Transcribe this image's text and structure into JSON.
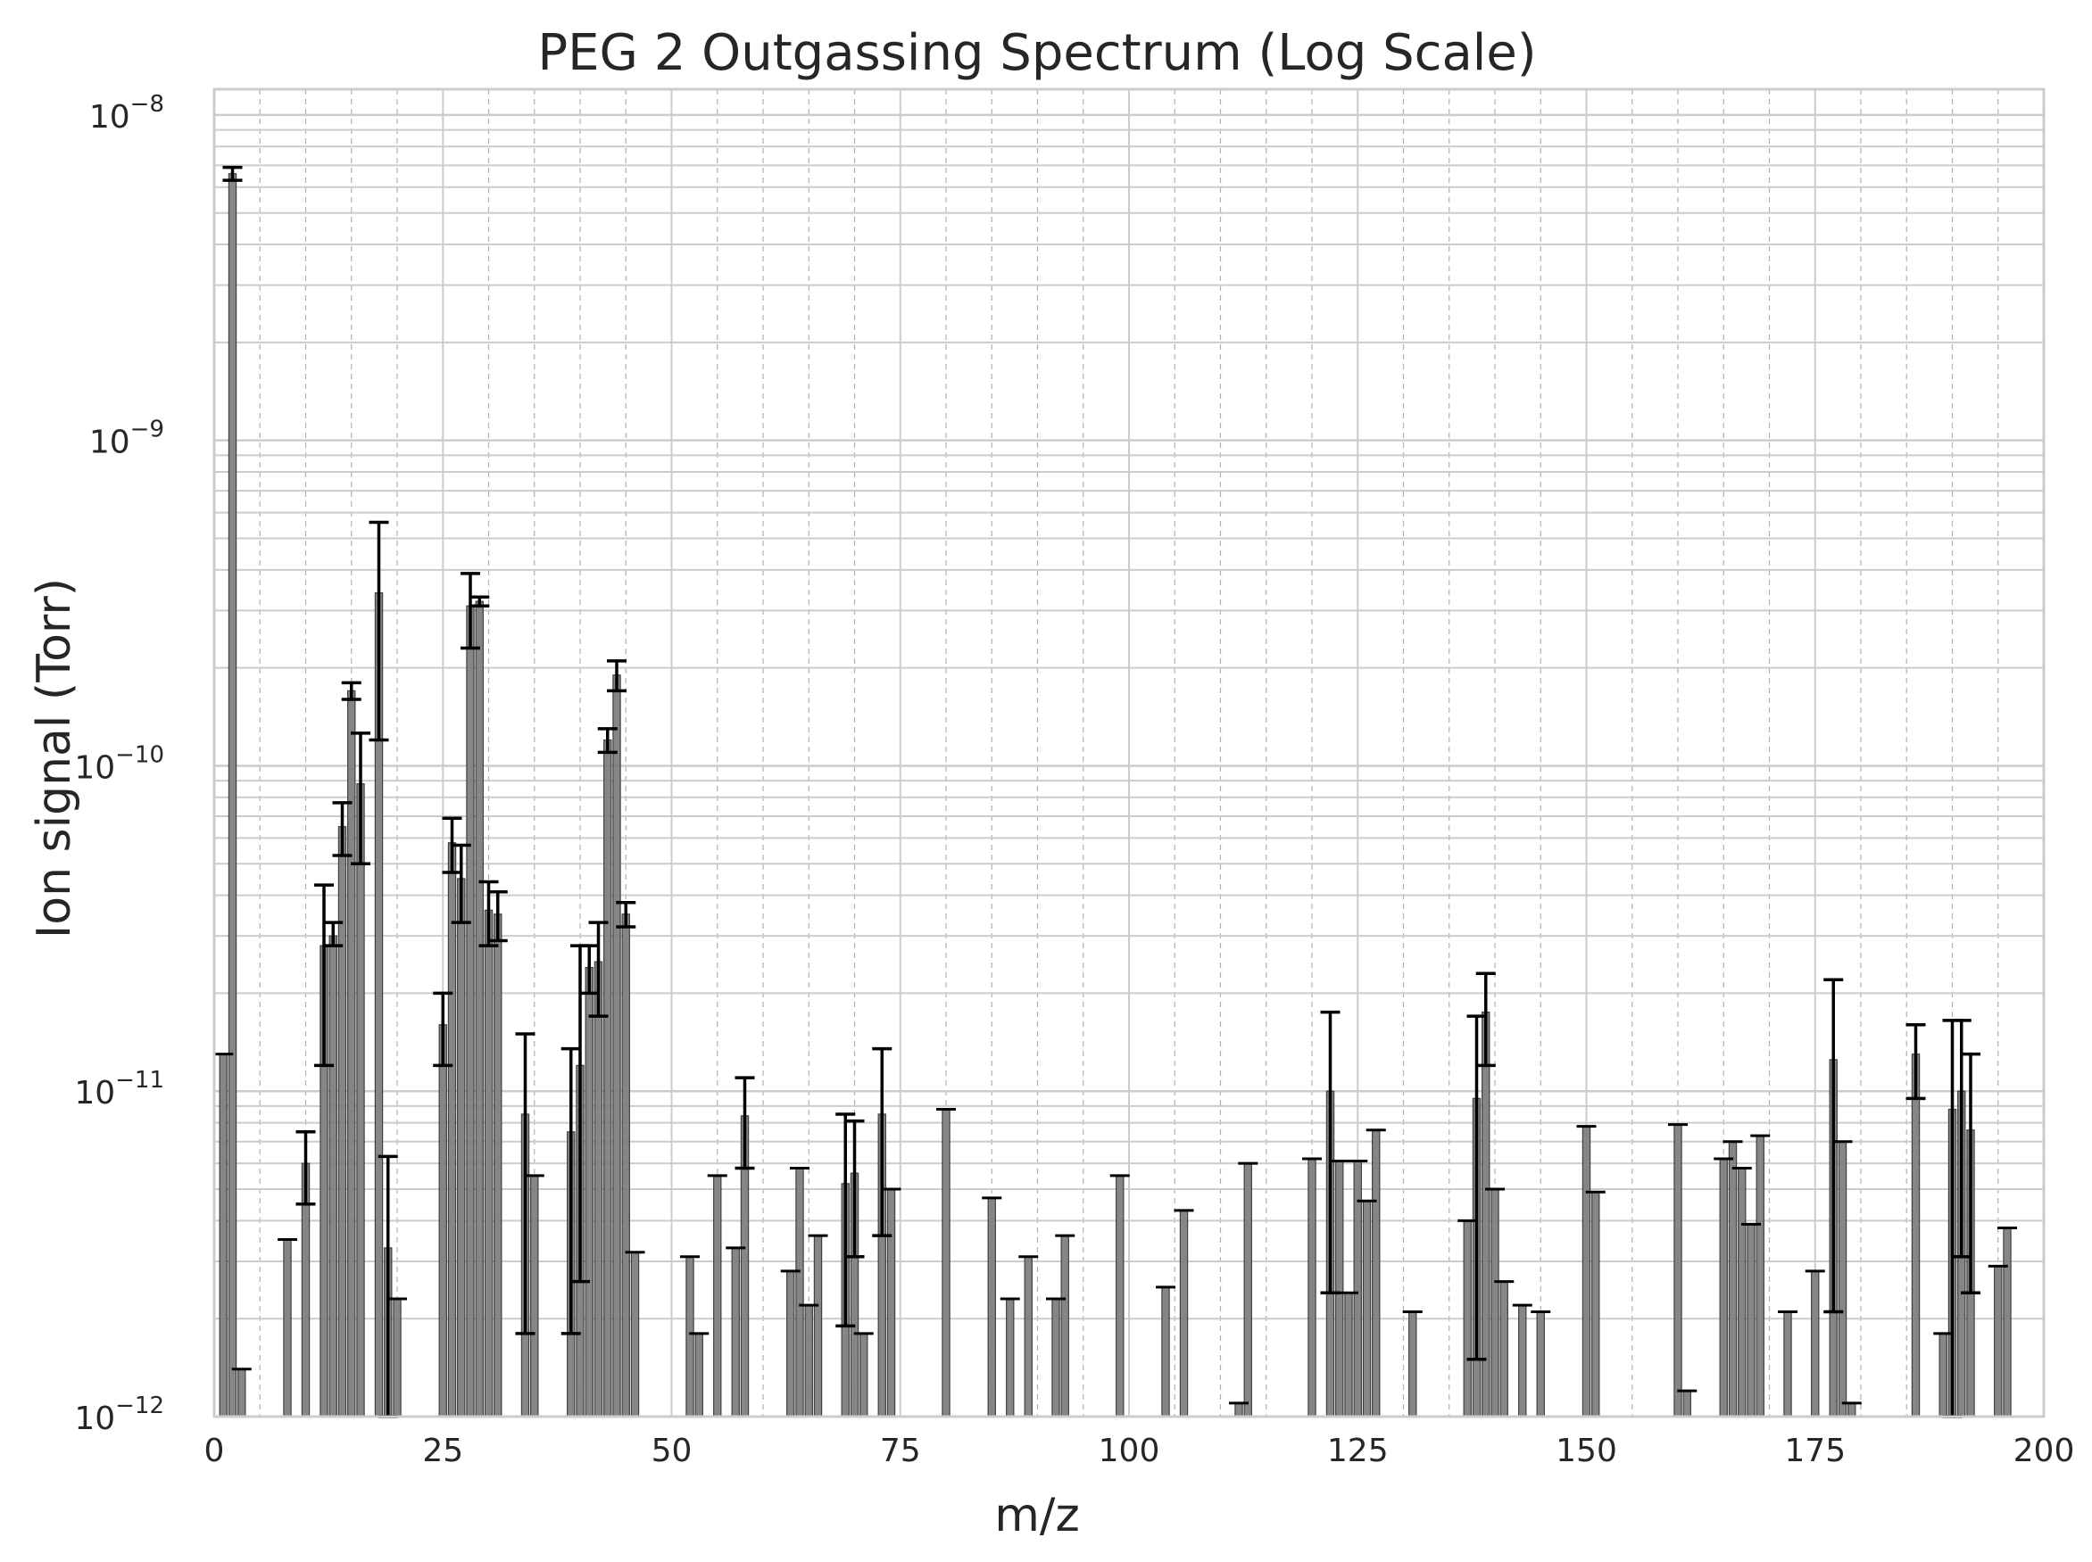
{
  "chart_data": {
    "type": "bar",
    "title": "PEG 2 Outgassing Spectrum (Log Scale)",
    "xlabel": "m/z",
    "ylabel": "Ion signal (Torr)",
    "xlim": [
      0,
      200
    ],
    "ylim": [
      1e-12,
      1.2e-08
    ],
    "yscale": "log",
    "grid": true,
    "legend": "none",
    "x_ticks": [
      "0",
      "25",
      "50",
      "75",
      "100",
      "125",
      "150",
      "175",
      "200"
    ],
    "y_ticks": [
      {
        "base": "10",
        "exp": "−12",
        "value": 1e-12
      },
      {
        "base": "10",
        "exp": "−11",
        "value": 1e-11
      },
      {
        "base": "10",
        "exp": "−10",
        "value": 1e-10
      },
      {
        "base": "10",
        "exp": "−9",
        "value": 1e-09
      },
      {
        "base": "10",
        "exp": "−8",
        "value": 1e-08
      }
    ],
    "colors": {
      "bar": "#7f7f7f",
      "bar_edge": "#404040",
      "error_bar": "#000000",
      "grid": "#cccccc",
      "axes": "#cccccc"
    },
    "bars": [
      {
        "x": 1,
        "y": 1.3e-11
      },
      {
        "x": 2,
        "y": 6.6e-09,
        "err_low": 6.3e-09,
        "err_high": 6.9e-09
      },
      {
        "x": 3,
        "y": 1.4e-12
      },
      {
        "x": 8,
        "y": 3.5e-12
      },
      {
        "x": 10,
        "y": 6e-12,
        "err_low": 4.5e-12,
        "err_high": 7.5e-12
      },
      {
        "x": 12,
        "y": 2.8e-11,
        "err_low": 1.2e-11,
        "err_high": 4.3e-11
      },
      {
        "x": 13,
        "y": 3e-11,
        "err_low": 2.8e-11,
        "err_high": 3.3e-11
      },
      {
        "x": 14,
        "y": 6.5e-11,
        "err_low": 5.3e-11,
        "err_high": 7.7e-11
      },
      {
        "x": 15,
        "y": 1.7e-10,
        "err_low": 1.6e-10,
        "err_high": 1.8e-10
      },
      {
        "x": 16,
        "y": 8.8e-11,
        "err_low": 5e-11,
        "err_high": 1.26e-10
      },
      {
        "x": 18,
        "y": 3.4e-10,
        "err_low": 1.2e-10,
        "err_high": 5.6e-10
      },
      {
        "x": 19,
        "y": 3.3e-12,
        "err_low": 1e-12,
        "err_high": 6.3e-12
      },
      {
        "x": 20,
        "y": 2.3e-12
      },
      {
        "x": 25,
        "y": 1.6e-11,
        "err_low": 1.2e-11,
        "err_high": 2e-11
      },
      {
        "x": 26,
        "y": 5.8e-11,
        "err_low": 4.7e-11,
        "err_high": 6.9e-11
      },
      {
        "x": 27,
        "y": 4.5e-11,
        "err_low": 3.3e-11,
        "err_high": 5.7e-11
      },
      {
        "x": 28,
        "y": 3.1e-10,
        "err_low": 2.3e-10,
        "err_high": 3.9e-10
      },
      {
        "x": 29,
        "y": 3.2e-10,
        "err_low": 3.1e-10,
        "err_high": 3.3e-10
      },
      {
        "x": 30,
        "y": 3.6e-11,
        "err_low": 2.8e-11,
        "err_high": 4.4e-11
      },
      {
        "x": 31,
        "y": 3.5e-11,
        "err_low": 2.9e-11,
        "err_high": 4.1e-11
      },
      {
        "x": 34,
        "y": 8.5e-12,
        "err_low": 1.8e-12,
        "err_high": 1.5e-11
      },
      {
        "x": 35,
        "y": 5.5e-12
      },
      {
        "x": 39,
        "y": 7.5e-12,
        "err_low": 1.8e-12,
        "err_high": 1.35e-11
      },
      {
        "x": 40,
        "y": 1.2e-11,
        "err_low": 2.6e-12,
        "err_high": 2.8e-11
      },
      {
        "x": 41,
        "y": 2.4e-11,
        "err_low": 2e-11,
        "err_high": 2.8e-11
      },
      {
        "x": 42,
        "y": 2.5e-11,
        "err_low": 1.7e-11,
        "err_high": 3.3e-11
      },
      {
        "x": 43,
        "y": 1.2e-10,
        "err_low": 1.1e-10,
        "err_high": 1.3e-10
      },
      {
        "x": 44,
        "y": 1.9e-10,
        "err_low": 1.7e-10,
        "err_high": 2.1e-10
      },
      {
        "x": 45,
        "y": 3.5e-11,
        "err_low": 3.2e-11,
        "err_high": 3.8e-11
      },
      {
        "x": 46,
        "y": 3.2e-12
      },
      {
        "x": 52,
        "y": 3.1e-12
      },
      {
        "x": 53,
        "y": 1.8e-12
      },
      {
        "x": 55,
        "y": 5.5e-12
      },
      {
        "x": 57,
        "y": 3.3e-12
      },
      {
        "x": 58,
        "y": 8.4e-12,
        "err_low": 5.8e-12,
        "err_high": 1.1e-11
      },
      {
        "x": 63,
        "y": 2.8e-12
      },
      {
        "x": 64,
        "y": 5.8e-12
      },
      {
        "x": 65,
        "y": 2.2e-12
      },
      {
        "x": 66,
        "y": 3.6e-12
      },
      {
        "x": 69,
        "y": 5.2e-12,
        "err_low": 1.9e-12,
        "err_high": 8.5e-12
      },
      {
        "x": 70,
        "y": 5.6e-12,
        "err_low": 3.1e-12,
        "err_high": 8.1e-12
      },
      {
        "x": 71,
        "y": 1.8e-12
      },
      {
        "x": 73,
        "y": 8.5e-12,
        "err_low": 3.6e-12,
        "err_high": 1.35e-11
      },
      {
        "x": 74,
        "y": 5e-12
      },
      {
        "x": 80,
        "y": 8.8e-12
      },
      {
        "x": 85,
        "y": 4.7e-12
      },
      {
        "x": 87,
        "y": 2.3e-12
      },
      {
        "x": 89,
        "y": 3.1e-12
      },
      {
        "x": 92,
        "y": 2.3e-12
      },
      {
        "x": 93,
        "y": 3.6e-12
      },
      {
        "x": 99,
        "y": 5.5e-12
      },
      {
        "x": 104,
        "y": 2.5e-12
      },
      {
        "x": 106,
        "y": 4.3e-12
      },
      {
        "x": 112,
        "y": 1.1e-12
      },
      {
        "x": 113,
        "y": 6e-12
      },
      {
        "x": 120,
        "y": 6.2e-12
      },
      {
        "x": 122,
        "y": 1e-11,
        "err_low": 2.4e-12,
        "err_high": 1.75e-11
      },
      {
        "x": 123,
        "y": 6.1e-12
      },
      {
        "x": 124,
        "y": 2.4e-12
      },
      {
        "x": 125,
        "y": 6.1e-12
      },
      {
        "x": 126,
        "y": 4.6e-12
      },
      {
        "x": 127,
        "y": 7.6e-12
      },
      {
        "x": 131,
        "y": 2.1e-12
      },
      {
        "x": 137,
        "y": 4e-12
      },
      {
        "x": 138,
        "y": 9.5e-12,
        "err_low": 1.5e-12,
        "err_high": 1.7e-11
      },
      {
        "x": 139,
        "y": 1.75e-11,
        "err_low": 1.2e-11,
        "err_high": 2.3e-11
      },
      {
        "x": 140,
        "y": 5e-12
      },
      {
        "x": 141,
        "y": 2.6e-12
      },
      {
        "x": 143,
        "y": 2.2e-12
      },
      {
        "x": 145,
        "y": 2.1e-12
      },
      {
        "x": 150,
        "y": 7.8e-12
      },
      {
        "x": 151,
        "y": 4.9e-12
      },
      {
        "x": 160,
        "y": 7.9e-12
      },
      {
        "x": 161,
        "y": 1.2e-12
      },
      {
        "x": 165,
        "y": 6.2e-12
      },
      {
        "x": 166,
        "y": 7e-12
      },
      {
        "x": 167,
        "y": 5.8e-12
      },
      {
        "x": 168,
        "y": 3.9e-12
      },
      {
        "x": 169,
        "y": 7.3e-12
      },
      {
        "x": 172,
        "y": 2.1e-12
      },
      {
        "x": 175,
        "y": 2.8e-12
      },
      {
        "x": 177,
        "y": 1.25e-11,
        "err_low": 2.1e-12,
        "err_high": 2.2e-11
      },
      {
        "x": 178,
        "y": 7e-12
      },
      {
        "x": 179,
        "y": 1.1e-12
      },
      {
        "x": 186,
        "y": 1.3e-11,
        "err_low": 9.5e-12,
        "err_high": 1.6e-11
      },
      {
        "x": 189,
        "y": 1.8e-12
      },
      {
        "x": 190,
        "y": 8.8e-12,
        "err_low": 1e-12,
        "err_high": 1.65e-11
      },
      {
        "x": 191,
        "y": 1e-11,
        "err_low": 3.1e-12,
        "err_high": 1.65e-11
      },
      {
        "x": 192,
        "y": 7.6e-12,
        "err_low": 2.4e-12,
        "err_high": 1.3e-11
      },
      {
        "x": 195,
        "y": 2.9e-12
      },
      {
        "x": 196,
        "y": 3.8e-12
      }
    ]
  }
}
